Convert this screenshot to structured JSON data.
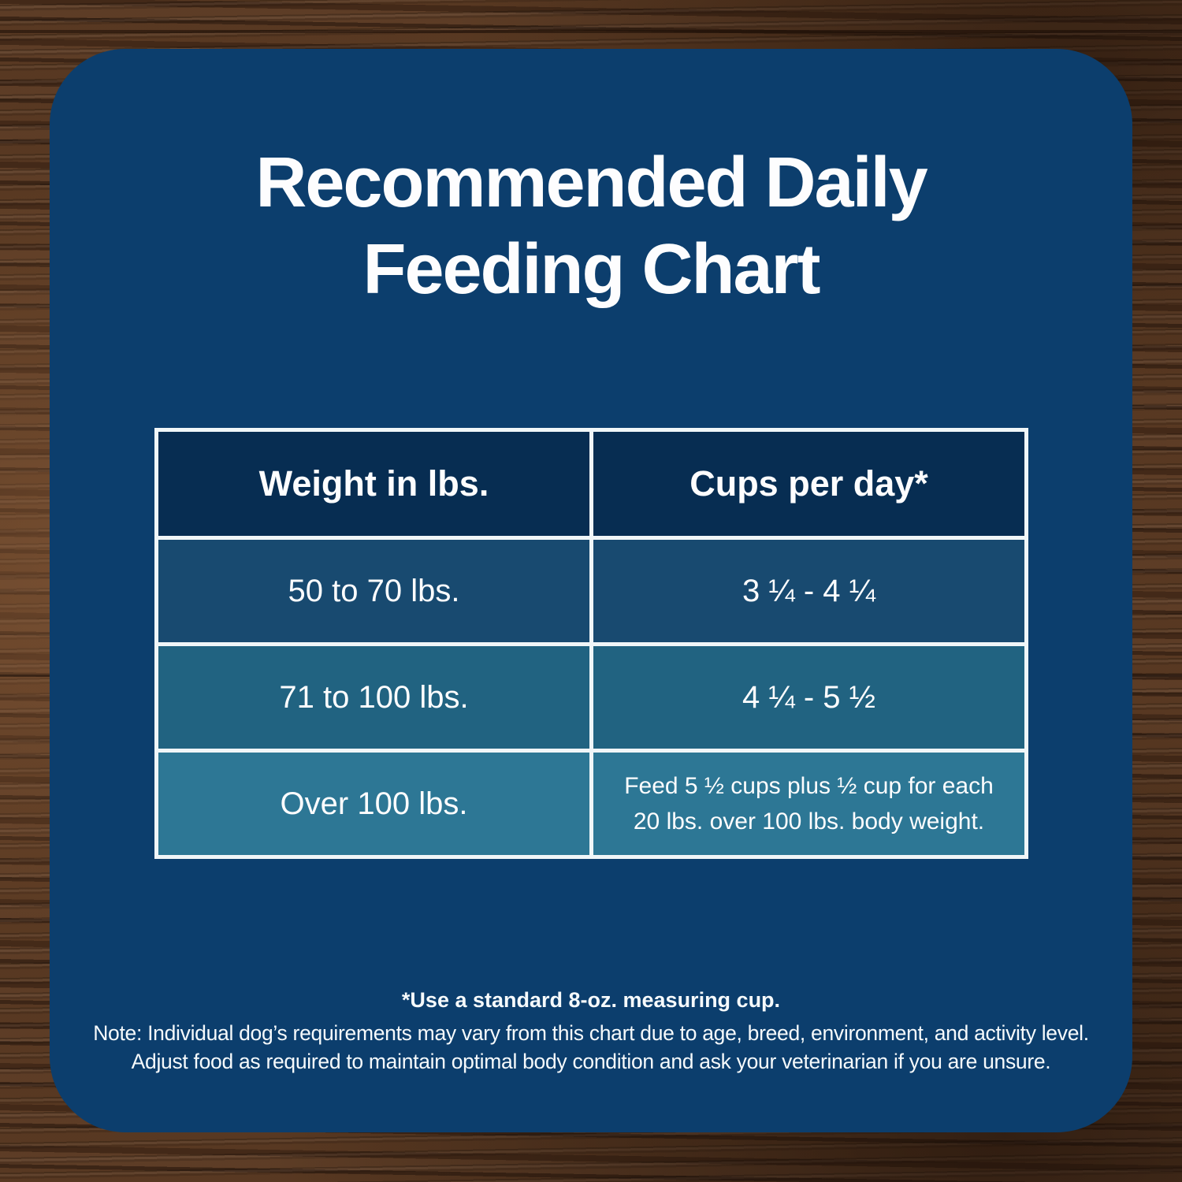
{
  "title": {
    "line1": "Recommended Daily",
    "line2": "Feeding Chart"
  },
  "table": {
    "headers": [
      "Weight in lbs.",
      "Cups per day*"
    ],
    "rows": [
      {
        "weight": "50 to 70 lbs.",
        "cups": "3 ¼ - 4 ¼"
      },
      {
        "weight": "71 to 100 lbs.",
        "cups": "4 ¼ - 5 ½"
      },
      {
        "weight": "Over 100 lbs.",
        "cups": "Feed 5 ½ cups plus ½ cup for each 20 lbs. over 100 lbs. body weight."
      }
    ]
  },
  "footnotes": {
    "measuring_cup": "*Use a standard 8-oz. measuring cup.",
    "note_line1": "Note: Individual dog’s requirements may vary from this chart due to age, breed, environment, and activity level.",
    "note_line2": "Adjust food as required to maintain optimal body condition and ask your veterinarian if you are unsure."
  },
  "colors": {
    "panel_blue": "#0c3e6d",
    "header_navy": "#072d52",
    "row1_blue": "#184a70",
    "row2_teal": "#216381",
    "row3_teal": "#2d7795",
    "table_border": "#f0f6f8",
    "text": "#ffffff",
    "wood_brown": "#4e3220"
  },
  "chart_data": {
    "type": "table",
    "title": "Recommended Daily Feeding Chart",
    "columns": [
      "Weight in lbs.",
      "Cups per day*"
    ],
    "rows": [
      [
        "50 to 70 lbs.",
        "3 ¼ - 4 ¼"
      ],
      [
        "71 to 100 lbs.",
        "4 ¼ - 5 ½"
      ],
      [
        "Over 100 lbs.",
        "Feed 5 ½ cups plus ½ cup for each 20 lbs. over 100 lbs. body weight."
      ]
    ],
    "weight_ranges_lbs": [
      [
        50,
        70
      ],
      [
        71,
        100
      ],
      [
        100,
        null
      ]
    ],
    "cups_per_day_ranges": [
      [
        3.25,
        4.25
      ],
      [
        4.25,
        5.5
      ],
      [
        5.5,
        null
      ]
    ],
    "over_100_rule": "5.5 cups plus 0.5 cup for each 20 lbs. over 100 lbs. body weight",
    "footnote": "*Use a standard 8-oz. measuring cup."
  }
}
